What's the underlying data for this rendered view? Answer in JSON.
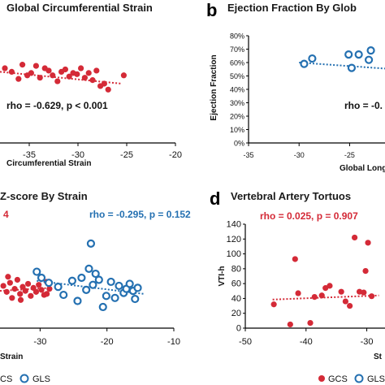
{
  "colors": {
    "red": "#d42a37",
    "blue": "#2470b1",
    "axis": "#000000"
  },
  "chart_data": [
    {
      "id": "a",
      "type": "scatter",
      "title": "Global Circumferential Strain",
      "xlabel": "Circumferential Strain",
      "xticks": [
        -35,
        -30,
        -25,
        -20
      ],
      "xlim": [
        -38,
        -20
      ],
      "ylim": [
        0,
        1
      ],
      "stat": "rho = -0.629,  p < 0.001",
      "series": [
        {
          "color": "red",
          "marker": "filled",
          "x": [
            -37.5,
            -36.8,
            -36.1,
            -35.7,
            -35.2,
            -34.8,
            -34.3,
            -33.9,
            -33.4,
            -33.0,
            -32.6,
            -32.1,
            -31.7,
            -31.3,
            -30.9,
            -30.5,
            -30.1,
            -29.7,
            -29.3,
            -28.9,
            -28.5,
            -28.1,
            -27.7,
            -27.3,
            -26.9,
            -25.3
          ],
          "y": [
            0.63,
            0.6,
            0.54,
            0.66,
            0.57,
            0.59,
            0.65,
            0.55,
            0.63,
            0.61,
            0.57,
            0.52,
            0.6,
            0.62,
            0.56,
            0.59,
            0.58,
            0.63,
            0.55,
            0.59,
            0.53,
            0.61,
            0.48,
            0.5,
            0.45,
            0.57
          ],
          "trend": [
            [
              -38,
              0.6
            ],
            [
              -25.5,
              0.5
            ]
          ]
        }
      ]
    },
    {
      "id": "b",
      "type": "scatter",
      "title": "Ejection Fraction By Glob",
      "ylabel": "Ejection Fraction",
      "xlabel": "Global Longi",
      "yticks": [
        "0%",
        "10%",
        "20%",
        "30%",
        "40%",
        "50%",
        "60%",
        "70%",
        "80%"
      ],
      "xticks": [
        -35,
        -30,
        -25
      ],
      "xlim": [
        -35,
        -21.5
      ],
      "ylim": [
        0,
        80
      ],
      "stat": "rho = -0.",
      "series": [
        {
          "color": "blue",
          "marker": "open",
          "x": [
            -29.5,
            -28.7,
            -25.1,
            -24.1,
            -23.1,
            -22.9,
            -24.8
          ],
          "y": [
            59,
            63,
            66,
            66,
            62,
            69,
            56
          ],
          "trend": [
            [
              -30,
              60
            ],
            [
              -21.5,
              55.5
            ]
          ]
        }
      ]
    },
    {
      "id": "c",
      "type": "scatter",
      "title": "Z-score By Strain",
      "xlabel": "Strain",
      "xticks": [
        -30,
        -20,
        -10
      ],
      "xlim": [
        -36,
        -10
      ],
      "ylim": [
        0,
        1
      ],
      "stat_red": "4",
      "stat": "rho = -0.295, p = 0.152",
      "legend": [
        "CS",
        "GLS"
      ],
      "series": [
        {
          "color": "red",
          "marker": "filled",
          "x": [
            -35.5,
            -35.0,
            -34.5,
            -34.2,
            -33.8,
            -33.4,
            -33.0,
            -32.6,
            -32.2,
            -31.8,
            -31.4,
            -31.0,
            -30.6,
            -30.2,
            -29.8,
            -29.4,
            -29.0,
            -28.6,
            -34.8,
            -32.9,
            -30.4,
            -29.0
          ],
          "y": [
            0.42,
            0.36,
            0.45,
            0.3,
            0.39,
            0.48,
            0.34,
            0.41,
            0.37,
            0.44,
            0.32,
            0.4,
            0.36,
            0.43,
            0.38,
            0.33,
            0.46,
            0.39,
            0.51,
            0.28,
            0.55,
            0.34
          ],
          "trend": [
            [
              -36,
              0.37
            ],
            [
              -28.5,
              0.4
            ]
          ]
        },
        {
          "color": "blue",
          "marker": "open",
          "x": [
            -30.5,
            -29.8,
            -28.7,
            -27.3,
            -26.5,
            -25.2,
            -24.4,
            -23.8,
            -23.1,
            -22.7,
            -22.1,
            -21.7,
            -21.2,
            -20.6,
            -20.1,
            -19.4,
            -18.8,
            -18.2,
            -17.5,
            -17.1,
            -16.6,
            -16.1,
            -15.8,
            -15.4,
            -22.4
          ],
          "y": [
            0.56,
            0.5,
            0.45,
            0.41,
            0.33,
            0.47,
            0.27,
            0.5,
            0.38,
            0.59,
            0.43,
            0.54,
            0.48,
            0.21,
            0.32,
            0.46,
            0.3,
            0.42,
            0.35,
            0.39,
            0.44,
            0.37,
            0.29,
            0.4,
            0.84
          ],
          "trend": [
            [
              -30.5,
              0.47
            ],
            [
              -14.5,
              0.34
            ]
          ]
        }
      ]
    },
    {
      "id": "d",
      "type": "scatter",
      "title": "Vertebral Artery Tortuos",
      "ylabel": "VTI-h",
      "xlabel": "St",
      "yticks": [
        0,
        20,
        40,
        60,
        80,
        100,
        120,
        140
      ],
      "xticks": [
        -50,
        -40,
        -30
      ],
      "xlim": [
        -50,
        -27
      ],
      "ylim": [
        0,
        140
      ],
      "stat": "rho = 0.025, p = 0.907",
      "legend": [
        "GCS",
        "GLS"
      ],
      "series": [
        {
          "color": "red",
          "marker": "filled",
          "x": [
            -45.3,
            -42.6,
            -41.8,
            -41.3,
            -39.3,
            -38.6,
            -37.4,
            -36.8,
            -36.1,
            -34.2,
            -33.5,
            -32.8,
            -32.0,
            -31.2,
            -30.5,
            -30.2,
            -29.8,
            -29.2
          ],
          "y": [
            32,
            5,
            93,
            47,
            7,
            42,
            44,
            54,
            57,
            49,
            36,
            30,
            122,
            49,
            48,
            77,
            115,
            43
          ],
          "trend": [
            [
              -45.5,
              38.5
            ],
            [
              -28,
              44
            ]
          ]
        }
      ]
    }
  ],
  "panels": {
    "b": "b",
    "d": "d"
  }
}
